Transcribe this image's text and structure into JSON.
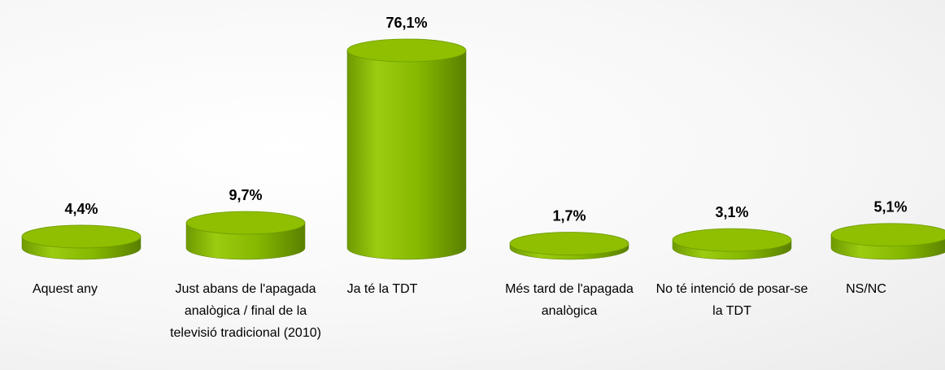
{
  "chart_data": {
    "type": "bar",
    "categories": [
      "Aquest any",
      "Just abans de l'apagada analògica / final de la televisió tradicional (2010)",
      "Ja té la TDT",
      "Més tard de l'apagada analògica",
      "No té intenció de posar-se la TDT",
      "NS/NC"
    ],
    "values": [
      4.4,
      9.7,
      76.1,
      1.7,
      3.1,
      5.1
    ],
    "value_labels": [
      "4,4%",
      "9,7%",
      "76,1%",
      "1,7%",
      "3,1%",
      "5,1%"
    ],
    "color": "#8fbf00"
  }
}
